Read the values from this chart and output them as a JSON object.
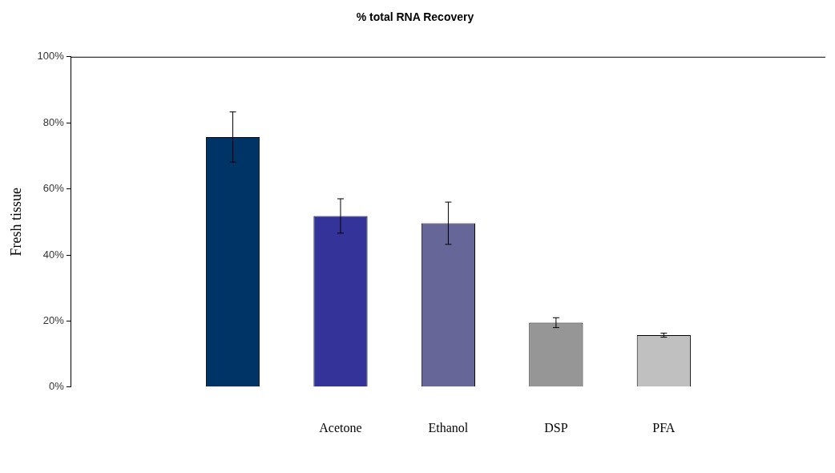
{
  "chart_data": {
    "type": "bar",
    "title": "% total RNA Recovery",
    "ylabel": "Fresh tissue",
    "categories": [
      null,
      null,
      "Acetone",
      "Ethanol",
      "DSP",
      "PFA",
      null
    ],
    "values": [
      null,
      75.7,
      51.8,
      49.6,
      19.5,
      15.7,
      null
    ],
    "errors": [
      null,
      7.6,
      5.2,
      6.4,
      1.5,
      0.6,
      null
    ],
    "colors": [
      null,
      "#003366",
      "#333399",
      "#666699",
      "#969696",
      "#c0c0c0",
      null
    ],
    "ylim": [
      0,
      100
    ],
    "yticks": [
      {
        "value": 0,
        "label": "0%"
      },
      {
        "value": 20,
        "label": "20%"
      },
      {
        "value": 40,
        "label": "40%"
      },
      {
        "value": 60,
        "label": "60%"
      },
      {
        "value": 80,
        "label": "80%"
      },
      {
        "value": 100,
        "label": "100%"
      }
    ],
    "grid": false,
    "legend": false
  }
}
